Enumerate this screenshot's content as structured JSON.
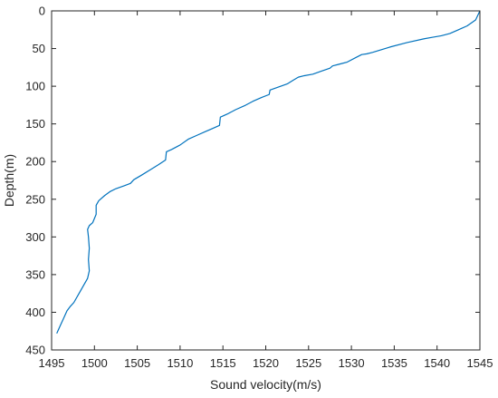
{
  "chart_data": {
    "type": "line",
    "title": "",
    "xlabel": "Sound velocity(m/s)",
    "ylabel": "Depth(m)",
    "xlim": [
      1495,
      1545
    ],
    "ylim": [
      0,
      450
    ],
    "y_reversed": true,
    "grid": false,
    "legend": "none",
    "box": true,
    "x_ticks": [
      1495,
      1500,
      1505,
      1510,
      1515,
      1520,
      1525,
      1530,
      1535,
      1540,
      1545
    ],
    "y_ticks": [
      0,
      50,
      100,
      150,
      200,
      250,
      300,
      350,
      400,
      450
    ],
    "colors": {
      "line": "#0072bd",
      "axes": "#262626"
    },
    "series": [
      {
        "x": [
          1545.0,
          1544.5,
          1543.5,
          1542.5,
          1541.5,
          1540.5,
          1539.5,
          1538.5,
          1536.5,
          1534.5,
          1532.5,
          1531.8,
          1531.2,
          1530.5,
          1529.5,
          1528.5,
          1527.8,
          1527.5,
          1526.5,
          1525.5,
          1524.5,
          1523.8,
          1523.2,
          1522.5,
          1521.5,
          1520.5,
          1520.4,
          1519.5,
          1518.5,
          1517.5,
          1516.5,
          1515.5,
          1514.7,
          1514.6,
          1513.8,
          1513.0,
          1512.0,
          1511.0,
          1510.0,
          1509.0,
          1508.4,
          1508.3,
          1507.5,
          1506.5,
          1505.5,
          1504.6,
          1504.2,
          1503.5,
          1502.5,
          1501.8,
          1501.2,
          1500.5,
          1500.2,
          1500.2,
          1499.8,
          1499.4,
          1499.2,
          1499.3,
          1499.4,
          1499.3,
          1499.4,
          1499.2,
          1498.8,
          1498.2,
          1497.6,
          1497.2,
          1496.8,
          1496.4,
          1496.0,
          1495.6
        ],
        "y": [
          0,
          12,
          20,
          25,
          30,
          33,
          35,
          37,
          42,
          48,
          55,
          57,
          58,
          62,
          68,
          71,
          73,
          76,
          80,
          84,
          86,
          88,
          92,
          97,
          101,
          105,
          111,
          115,
          120,
          126,
          131,
          137,
          141,
          152,
          156,
          160,
          165,
          170,
          178,
          184,
          187,
          198,
          204,
          211,
          218,
          224,
          229,
          232,
          236,
          240,
          245,
          252,
          258,
          270,
          281,
          285,
          290,
          300,
          315,
          330,
          345,
          355,
          363,
          375,
          387,
          392,
          398,
          408,
          418,
          428
        ]
      }
    ]
  }
}
